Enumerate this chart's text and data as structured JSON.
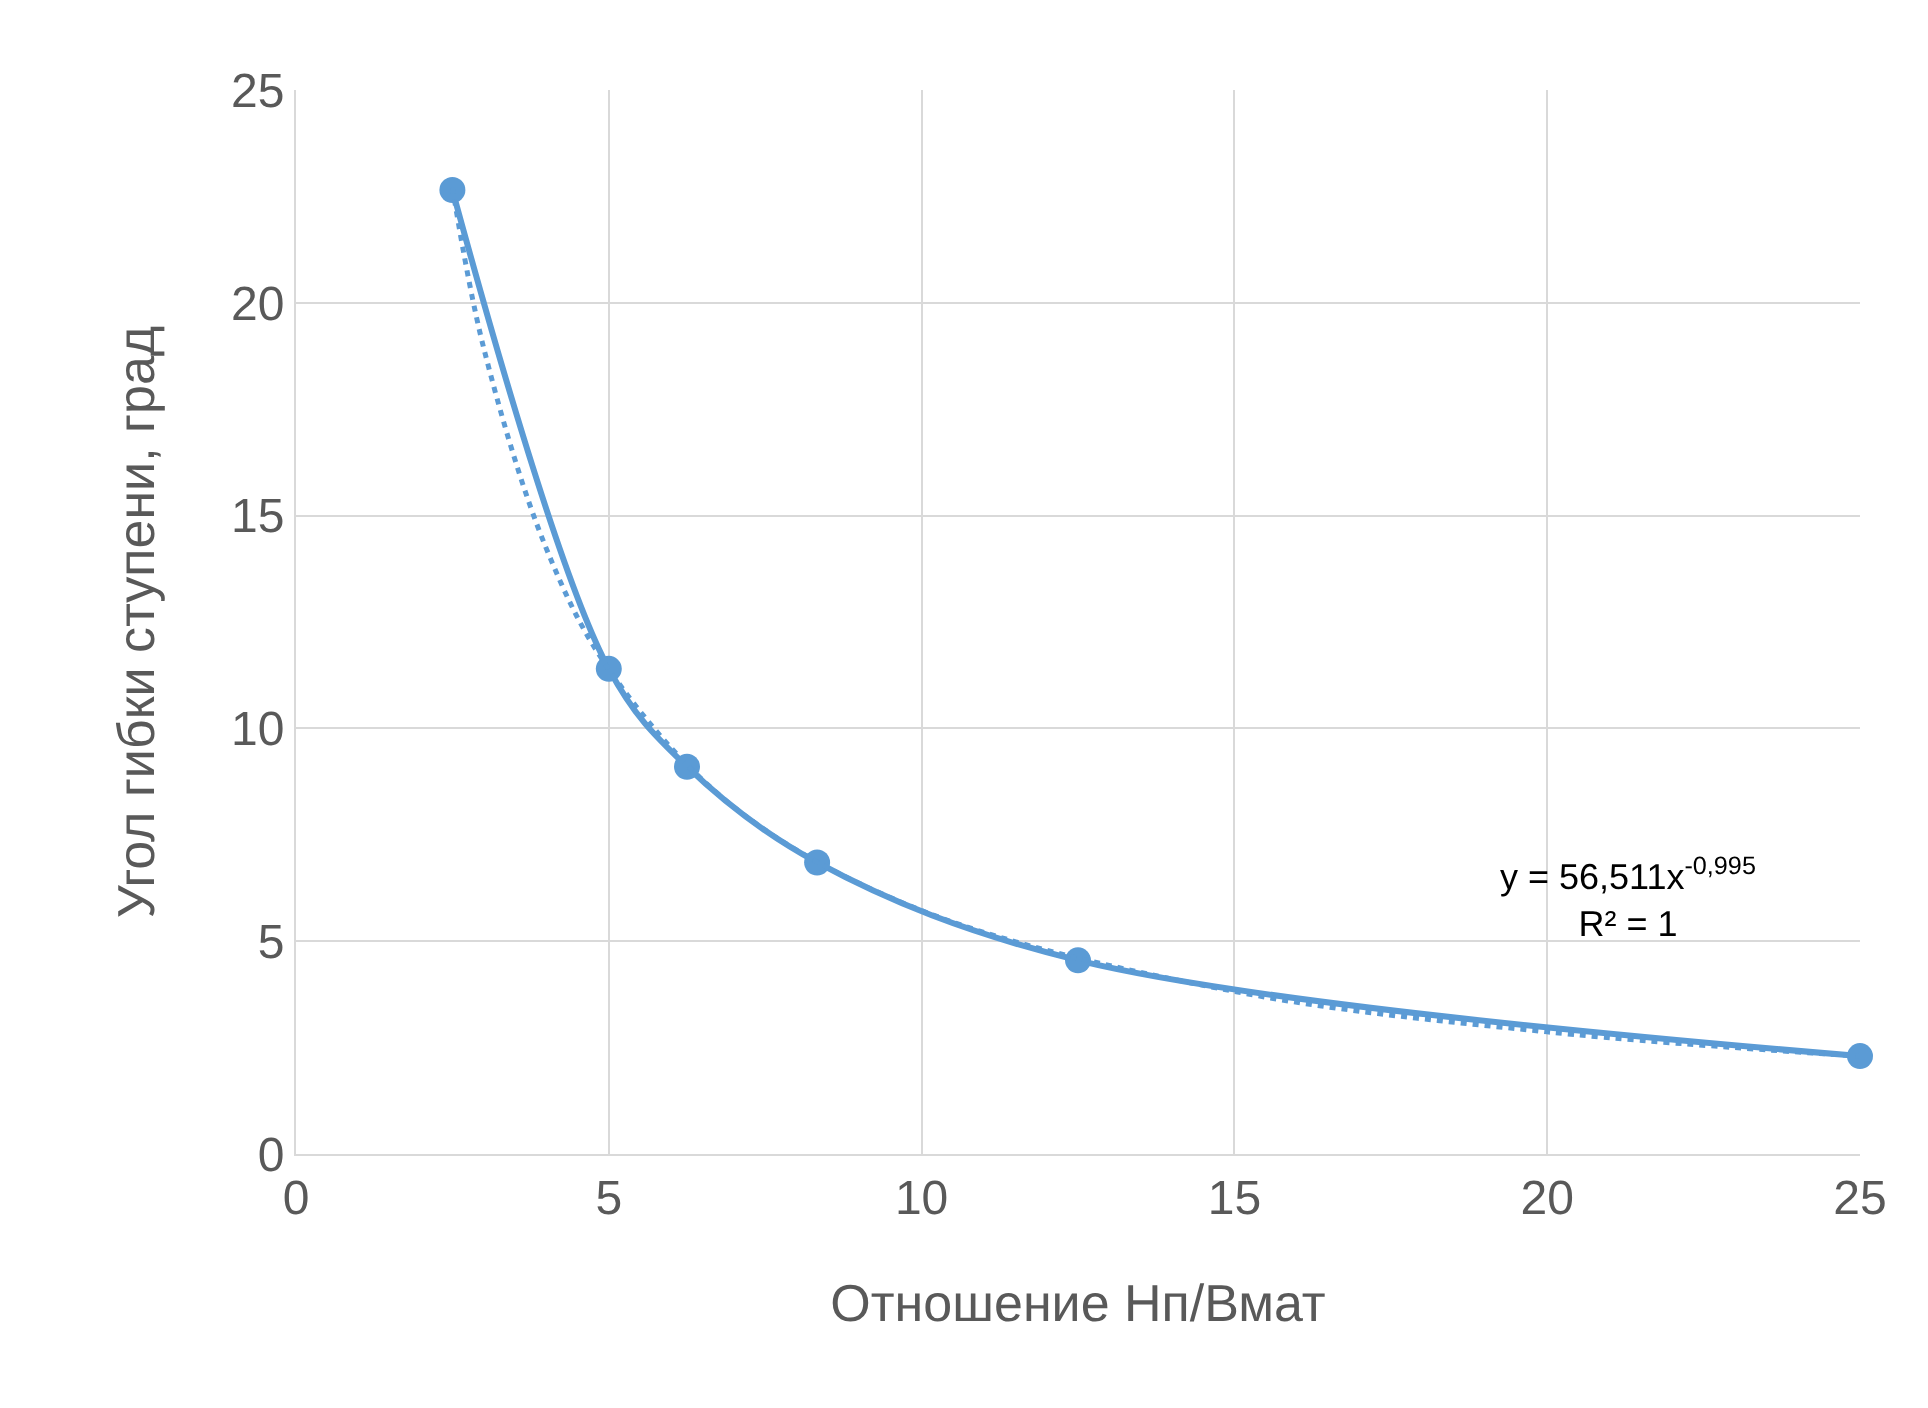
{
  "chart_data": {
    "type": "line",
    "xlabel": "Отношение Нп/Вмат",
    "ylabel": "Угол гибки ступени, град",
    "x": [
      2.5,
      5,
      6.25,
      8.33,
      12.5,
      25
    ],
    "series": [
      {
        "color": "#5b9bd5",
        "values": [
          22.65,
          11.4,
          9.1,
          6.85,
          4.55,
          2.3
        ],
        "marker": "circle",
        "line_style": "solid"
      },
      {
        "color": "#5b9bd5",
        "x": [
          2.5,
          3,
          4,
          5,
          7,
          10,
          15,
          20,
          25
        ],
        "values": [
          22.71,
          18.94,
          14.23,
          11.39,
          8.15,
          5.72,
          3.82,
          2.87,
          2.3
        ],
        "marker": "none",
        "line_style": "dotted"
      }
    ],
    "xlim": [
      0,
      25
    ],
    "xticks": [
      0,
      5,
      10,
      15,
      20,
      25
    ],
    "ylim": [
      0,
      25
    ],
    "yticks": [
      0,
      5,
      10,
      15,
      20,
      25
    ],
    "grid": true,
    "legend": false,
    "annotations": [
      "y = 56,511x$^{-0,995}$\nR² = 1"
    ]
  }
}
